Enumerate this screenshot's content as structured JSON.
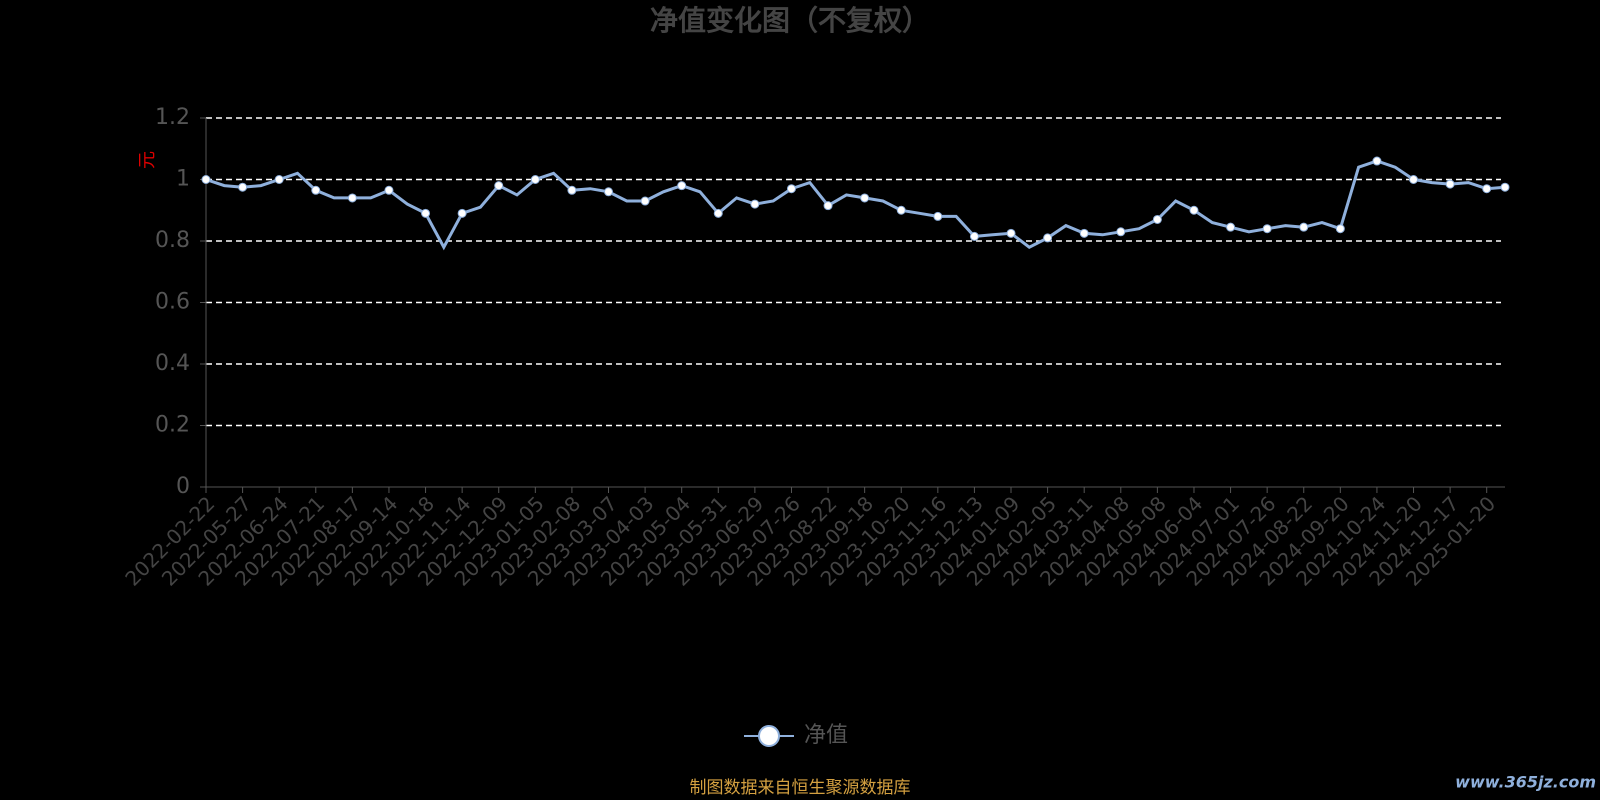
{
  "chart_data": {
    "type": "line",
    "title": "净值变化图（不复权）",
    "y_axis_label": "元",
    "footer": "制图数据来自恒生聚源数据库",
    "watermark": "www.365jz.com",
    "categories": [
      "2022-02-22",
      null,
      "2022-05-27",
      null,
      "2022-06-24",
      null,
      "2022-07-21",
      null,
      "2022-08-17",
      null,
      "2022-09-14",
      null,
      "2022-10-18",
      null,
      "2022-11-14",
      null,
      "2022-12-09",
      null,
      "2023-01-05",
      null,
      "2023-02-08",
      null,
      "2023-03-07",
      null,
      "2023-04-03",
      null,
      "2023-05-04",
      null,
      "2023-05-31",
      null,
      "2023-06-29",
      null,
      "2023-07-26",
      null,
      "2023-08-22",
      null,
      "2023-09-18",
      null,
      "2023-10-20",
      null,
      "2023-11-16",
      null,
      "2023-12-13",
      null,
      "2024-01-09",
      null,
      "2024-02-05",
      null,
      "2024-03-11",
      null,
      "2024-04-08",
      null,
      "2024-05-08",
      null,
      "2024-06-04",
      null,
      "2024-07-01",
      null,
      "2024-07-26",
      null,
      "2024-08-22",
      null,
      "2024-09-20",
      null,
      "2024-10-24",
      null,
      "2024-11-20",
      null,
      "2024-12-17",
      null,
      "2025-01-20",
      null
    ],
    "series": [
      {
        "name": "净值",
        "color": "#8fb0dc",
        "values": [
          1.0,
          0.98,
          0.975,
          0.98,
          1.0,
          1.02,
          0.965,
          0.94,
          0.94,
          0.94,
          0.965,
          0.92,
          0.89,
          0.78,
          0.89,
          0.91,
          0.98,
          0.95,
          1.0,
          1.02,
          0.965,
          0.97,
          0.96,
          0.93,
          0.93,
          0.96,
          0.98,
          0.96,
          0.89,
          0.94,
          0.92,
          0.93,
          0.97,
          0.99,
          0.915,
          0.95,
          0.94,
          0.93,
          0.9,
          0.89,
          0.88,
          0.88,
          0.815,
          0.82,
          0.825,
          0.78,
          0.81,
          0.85,
          0.825,
          0.82,
          0.83,
          0.84,
          0.87,
          0.93,
          0.9,
          0.86,
          0.845,
          0.83,
          0.84,
          0.85,
          0.845,
          0.86,
          0.84,
          1.04,
          1.06,
          1.04,
          1.0,
          0.99,
          0.985,
          0.99,
          0.97,
          0.975
        ]
      }
    ],
    "ylim": [
      0,
      1.2
    ],
    "yticks": [
      0,
      0.2,
      0.4,
      0.6,
      0.8,
      1,
      1.2
    ],
    "grid": true
  }
}
